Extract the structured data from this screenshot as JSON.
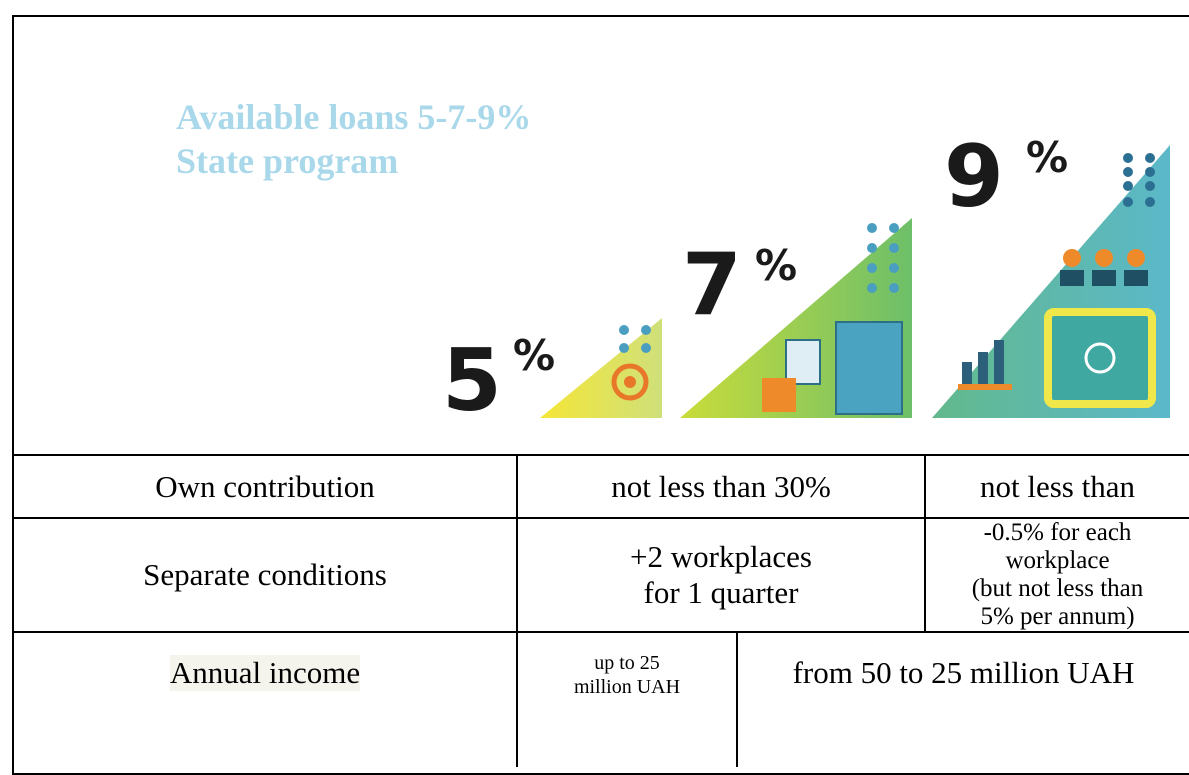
{
  "header": {
    "title": [
      "Available loans 5-7-9%",
      "State program"
    ]
  },
  "illustration": {
    "rates": [
      {
        "number": "5",
        "unit": "%"
      },
      {
        "number": "7",
        "unit": "%"
      },
      {
        "number": "9",
        "unit": "%"
      }
    ]
  },
  "table": {
    "rows": [
      [
        [
          "Own contribution"
        ],
        [
          "not less than 30%"
        ],
        [
          "not less than"
        ]
      ],
      [
        [
          "Separate conditions"
        ],
        [
          "+2 workplaces",
          "for 1 quarter"
        ],
        [
          "-0.5% for each",
          "workplace",
          "(but not less than",
          "5% per annum)"
        ]
      ],
      [
        [
          "Annual income"
        ],
        [
          "up to 25",
          "million UAH"
        ],
        [
          "from 50 to 25 million UAH"
        ]
      ]
    ]
  }
}
